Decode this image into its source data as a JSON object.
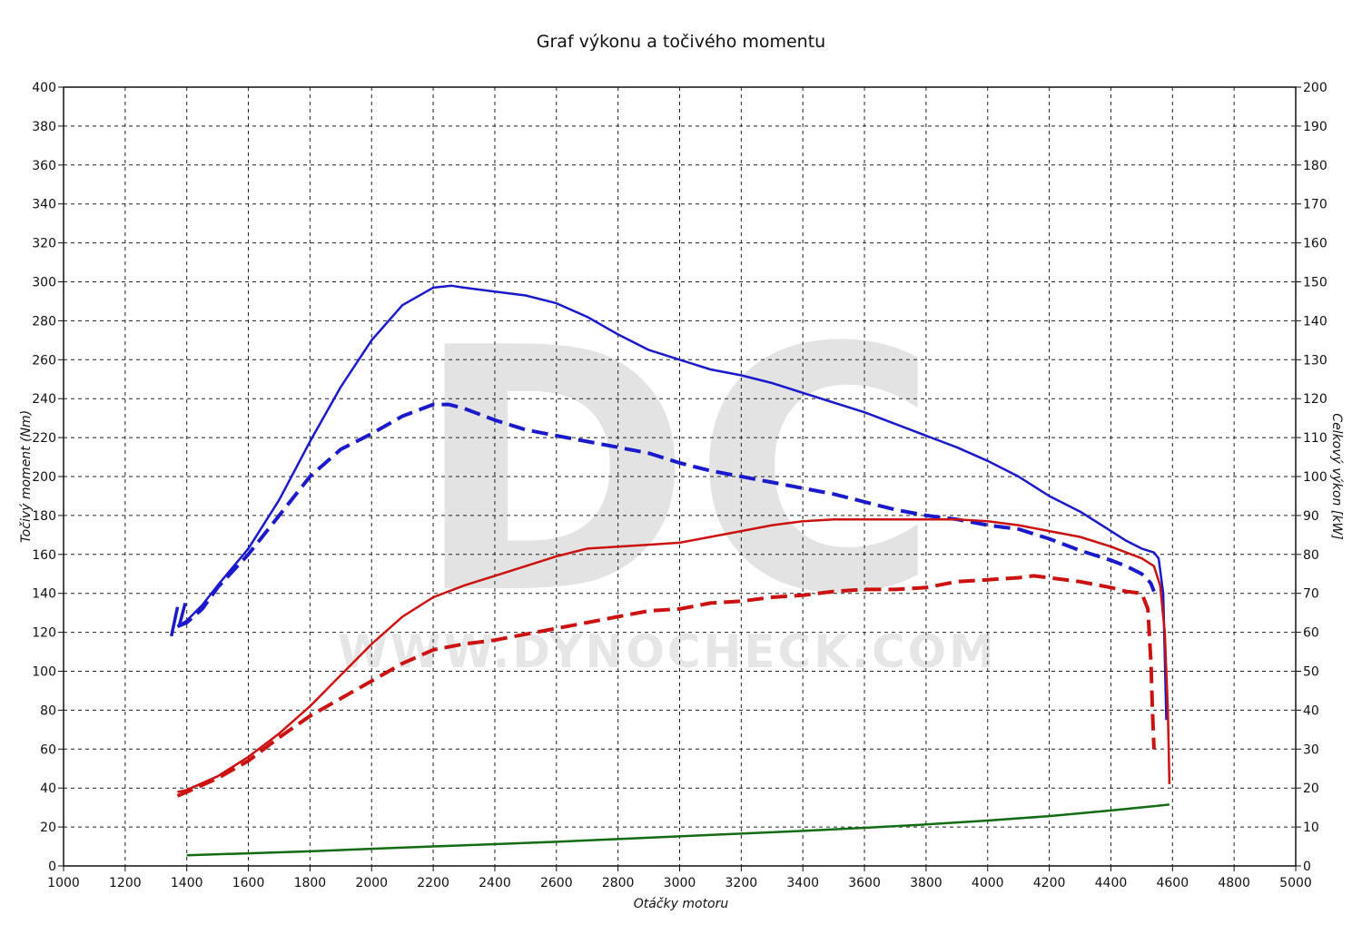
{
  "chart_data": {
    "type": "line",
    "title": "Graf výkonu a točivého momentu",
    "xlabel": "Otáčky motoru",
    "ylabel_left": "Točivý moment (Nm)",
    "ylabel_right": "Celkový výkon [kW]",
    "watermark_logo": "DC",
    "watermark_text": "WWW.DYNOCHECK.COM",
    "xlim": [
      1000,
      5000
    ],
    "ylim_left": [
      0,
      400
    ],
    "ylim_right": [
      0,
      200
    ],
    "x_ticks": [
      1000,
      1200,
      1400,
      1600,
      1800,
      2000,
      2200,
      2400,
      2600,
      2800,
      3000,
      3200,
      3400,
      3600,
      3800,
      4000,
      4200,
      4400,
      4600,
      4800,
      5000
    ],
    "y_left_ticks": [
      0,
      20,
      40,
      60,
      80,
      100,
      120,
      140,
      160,
      180,
      200,
      220,
      240,
      260,
      280,
      300,
      320,
      340,
      360,
      380,
      400
    ],
    "y_right_ticks": [
      0,
      10,
      20,
      30,
      40,
      50,
      60,
      70,
      80,
      90,
      100,
      110,
      120,
      130,
      140,
      150,
      160,
      170,
      180,
      190,
      200
    ],
    "grid": true,
    "series": [
      {
        "id": "torque_solid",
        "axis": "left",
        "color": "#1a1acc",
        "style": "solid",
        "x": [
          1370,
          1400,
          1450,
          1500,
          1600,
          1700,
          1800,
          1900,
          2000,
          2100,
          2200,
          2260,
          2300,
          2400,
          2500,
          2600,
          2700,
          2800,
          2900,
          3000,
          3100,
          3200,
          3300,
          3400,
          3500,
          3600,
          3700,
          3800,
          3900,
          4000,
          4100,
          4200,
          4300,
          4400,
          4450,
          4500,
          4540,
          4555,
          4570,
          4580
        ],
        "y": [
          123,
          126,
          134,
          144,
          163,
          188,
          218,
          246,
          270,
          288,
          297,
          298,
          297,
          295,
          293,
          289,
          282,
          273,
          265,
          260,
          255,
          252,
          248,
          243,
          238,
          233,
          227,
          221,
          215,
          208,
          200,
          190,
          182,
          172,
          167,
          163,
          161,
          158,
          140,
          75
        ]
      },
      {
        "id": "torque_dashed",
        "axis": "left",
        "color": "#1a1acc",
        "style": "dashed",
        "x": [
          1370,
          1400,
          1450,
          1500,
          1600,
          1700,
          1800,
          1900,
          2000,
          2100,
          2200,
          2250,
          2300,
          2400,
          2500,
          2600,
          2700,
          2800,
          2900,
          3000,
          3100,
          3200,
          3300,
          3400,
          3500,
          3600,
          3700,
          3800,
          3900,
          4000,
          4100,
          4200,
          4300,
          4400,
          4450,
          4500,
          4520,
          4530,
          4540
        ],
        "y": [
          123,
          125,
          132,
          143,
          160,
          180,
          200,
          214,
          222,
          231,
          237,
          237,
          235,
          229,
          224,
          221,
          218,
          215,
          212,
          207,
          203,
          200,
          197,
          194,
          191,
          187,
          183,
          180,
          178,
          175,
          173,
          168,
          162,
          157,
          154,
          150,
          147,
          145,
          141
        ]
      },
      {
        "id": "power_solid",
        "axis": "right",
        "color": "#cc1111",
        "style": "solid",
        "x": [
          1370,
          1400,
          1500,
          1600,
          1700,
          1800,
          1900,
          2000,
          2100,
          2200,
          2300,
          2400,
          2500,
          2600,
          2700,
          2800,
          2900,
          3000,
          3100,
          3200,
          3300,
          3400,
          3500,
          3600,
          3700,
          3800,
          3900,
          4000,
          4100,
          4200,
          4300,
          4400,
          4450,
          4500,
          4540,
          4560,
          4575,
          4585,
          4590
        ],
        "y": [
          19,
          19.5,
          23,
          28,
          34,
          41,
          49,
          57,
          64,
          69,
          72,
          74.5,
          77,
          79.5,
          81.5,
          82,
          82.5,
          83,
          84.5,
          86,
          87.5,
          88.5,
          89,
          89,
          89,
          89,
          89,
          88.5,
          87.5,
          86,
          84.5,
          82,
          80.5,
          79,
          77,
          72,
          60,
          40,
          21
        ]
      },
      {
        "id": "power_dashed",
        "axis": "right",
        "color": "#cc1111",
        "style": "dashed",
        "x": [
          1370,
          1400,
          1500,
          1600,
          1700,
          1800,
          1900,
          2000,
          2100,
          2200,
          2300,
          2400,
          2500,
          2600,
          2700,
          2800,
          2900,
          3000,
          3100,
          3200,
          3300,
          3400,
          3500,
          3600,
          3700,
          3800,
          3900,
          4000,
          4100,
          4150,
          4200,
          4300,
          4400,
          4450,
          4500,
          4520,
          4530,
          4535,
          4540
        ],
        "y": [
          18,
          19,
          22.5,
          27,
          33,
          38.5,
          43,
          47.5,
          52,
          55.5,
          57,
          58,
          59.5,
          61,
          62.5,
          64,
          65.5,
          66,
          67.5,
          68,
          69,
          69.5,
          70.5,
          71,
          71,
          71.5,
          73,
          73.5,
          74,
          74.5,
          74,
          73,
          71.5,
          70.5,
          70,
          66,
          52,
          40,
          30
        ]
      },
      {
        "id": "loss_line",
        "axis": "left",
        "color": "#136b13",
        "style": "solid",
        "x": [
          1400,
          1600,
          1800,
          2000,
          2200,
          2400,
          2600,
          2800,
          3000,
          3200,
          3400,
          3600,
          3800,
          4000,
          4200,
          4400,
          4590
        ],
        "y": [
          5.5,
          6.5,
          7.5,
          8.8,
          10,
          11.2,
          12.4,
          13.8,
          15.2,
          16.6,
          18,
          19.6,
          21.3,
          23.3,
          25.6,
          28.5,
          31.5
        ]
      }
    ],
    "ticks_markers": [
      {
        "axis": "left",
        "color": "#1a1acc",
        "x": [
          1350,
          1370
        ],
        "y": [
          118,
          133
        ]
      },
      {
        "axis": "left",
        "color": "#1a1acc",
        "x": [
          1375,
          1395
        ],
        "y": [
          123,
          135
        ]
      }
    ]
  }
}
